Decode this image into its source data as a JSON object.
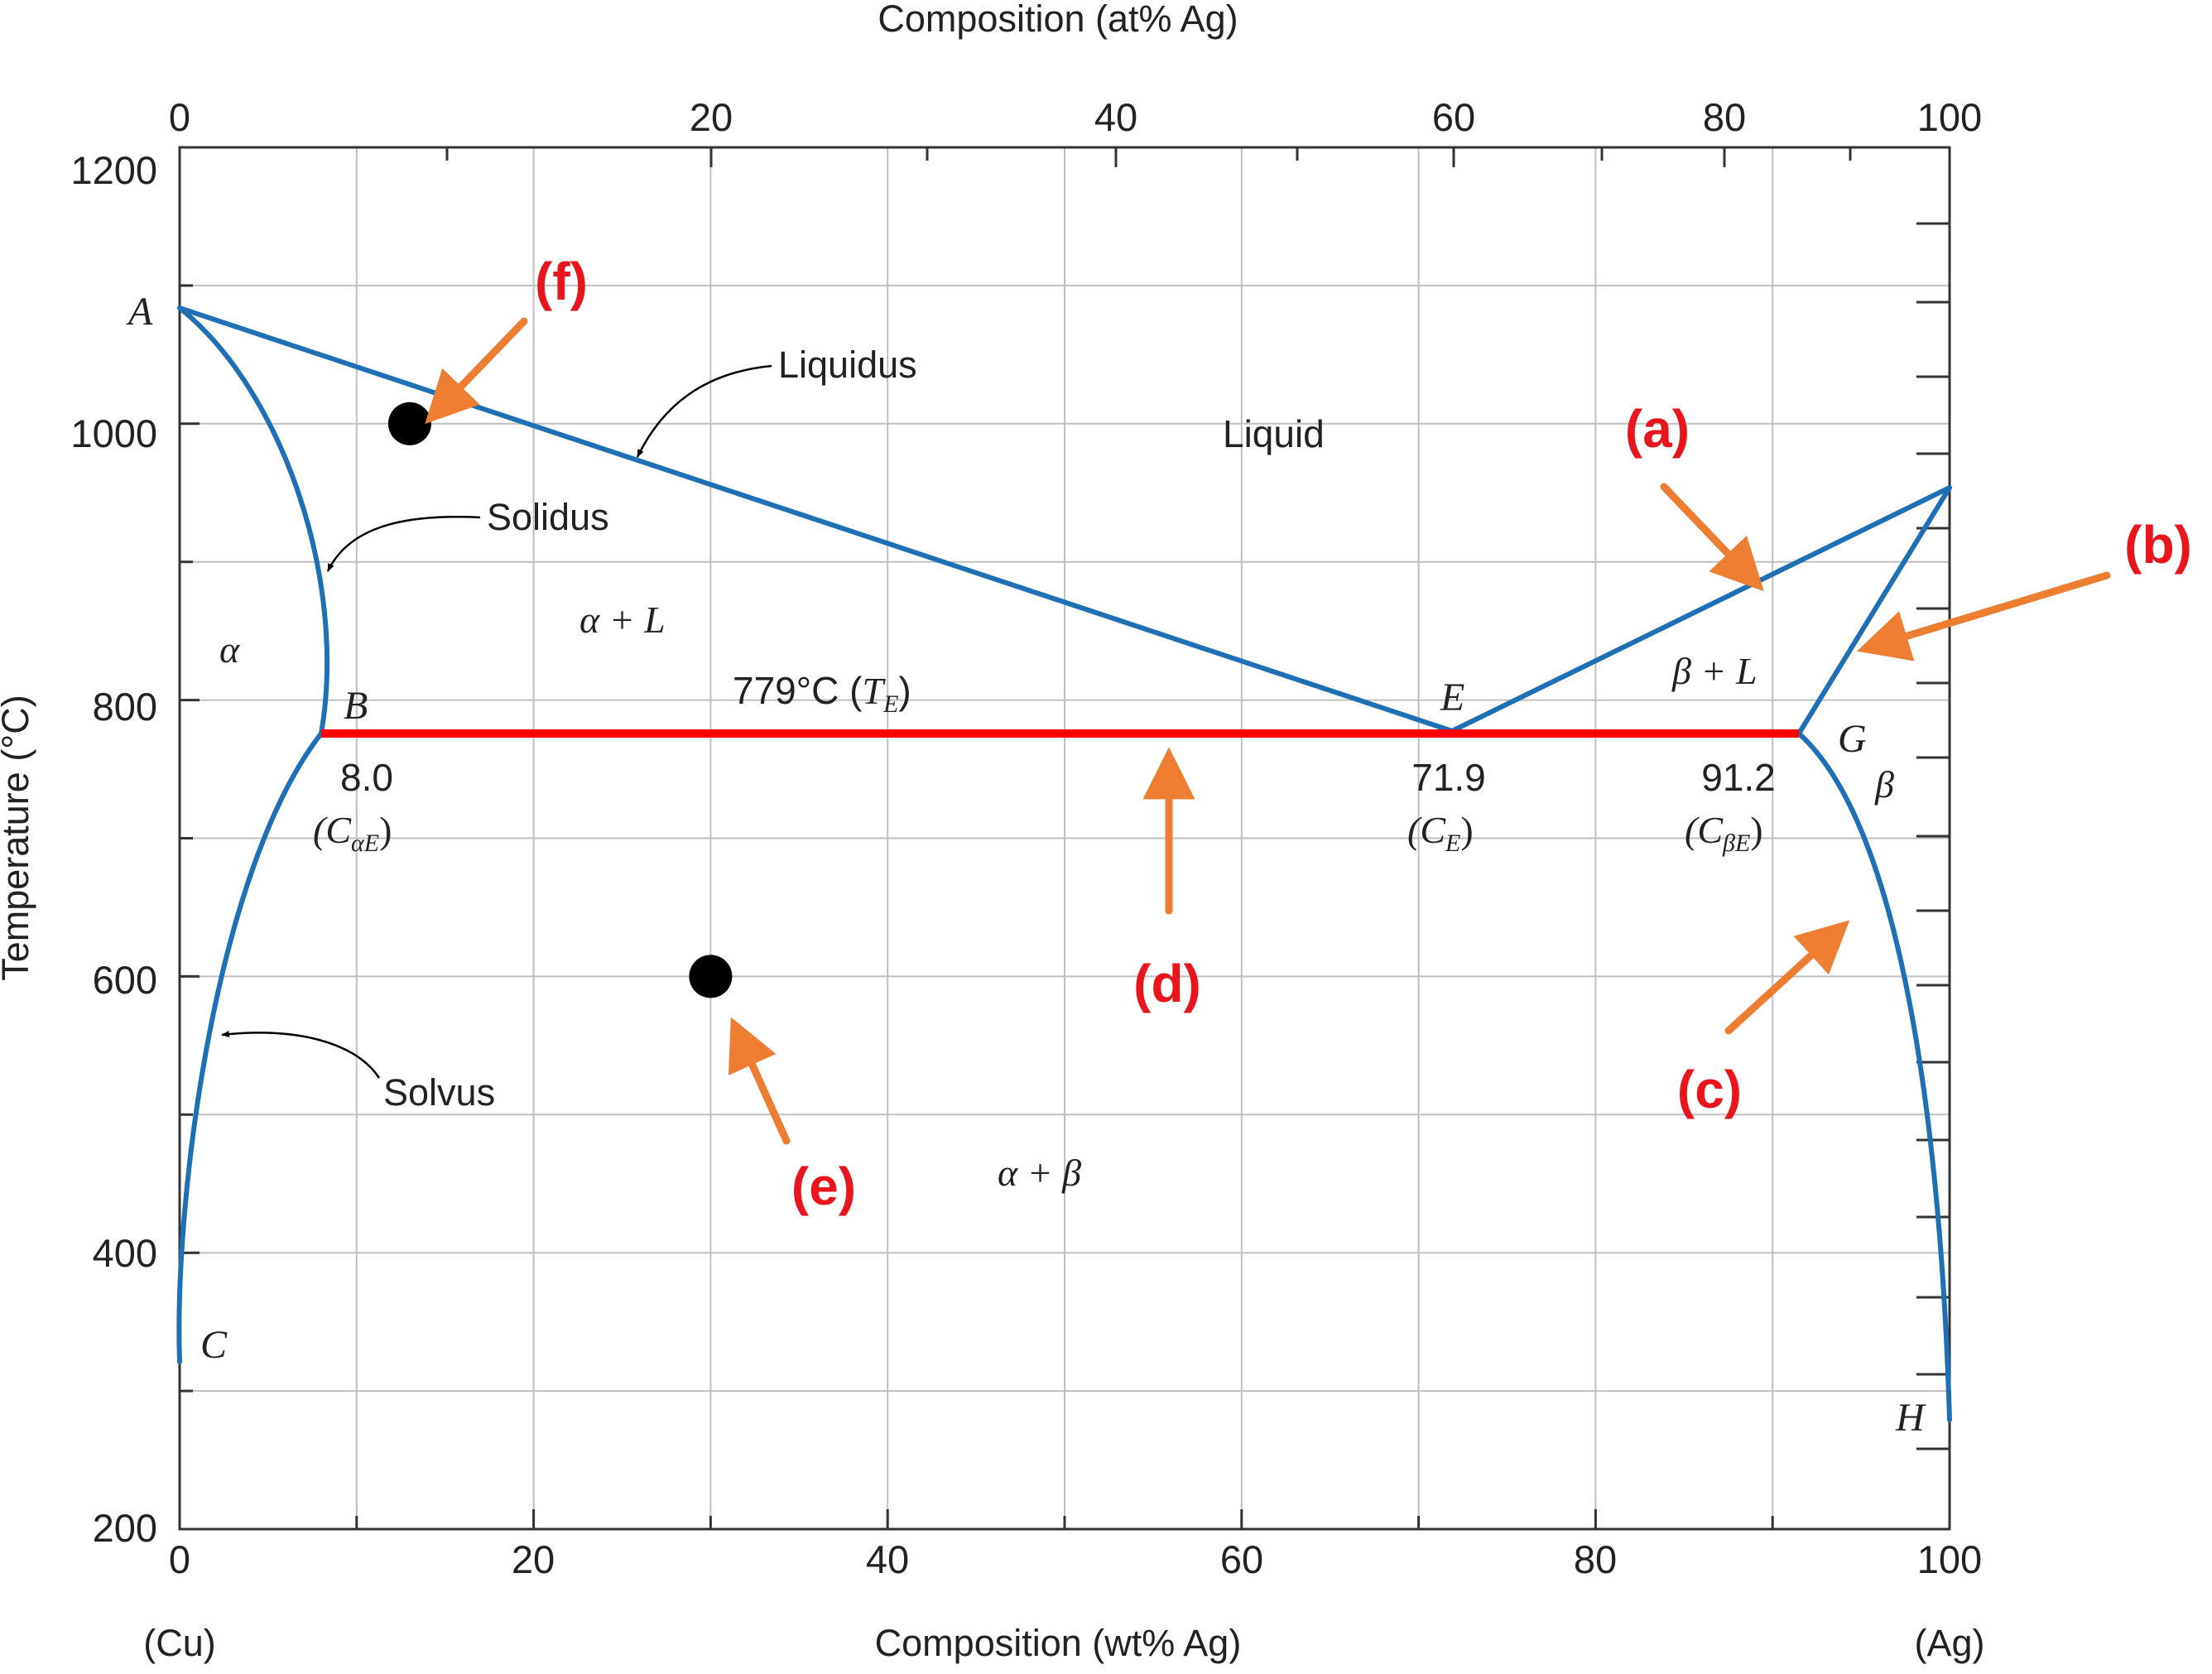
{
  "axes": {
    "top_title": "Composition (at% Ag)",
    "bottom_title": "Composition (wt% Ag)",
    "y_title": "Temperature (°C)",
    "bottom_left_element": "(Cu)",
    "bottom_right_element": "(Ag)",
    "bottom_ticks": [
      "0",
      "20",
      "40",
      "60",
      "80",
      "100"
    ],
    "top_ticks": [
      "0",
      "20",
      "40",
      "60",
      "80",
      "100"
    ],
    "y_ticks": [
      "1200",
      "1000",
      "800",
      "600",
      "400",
      "200"
    ]
  },
  "regions": {
    "liquid": "Liquid",
    "alpha_L": "α + L",
    "alpha": "α",
    "beta_L": "β + L",
    "beta": "β",
    "alpha_beta": "α + β"
  },
  "curve_labels": {
    "liquidus": "Liquidus",
    "solidus": "Solidus",
    "solvus": "Solvus"
  },
  "points": {
    "A": "A",
    "B": "B",
    "C": "C",
    "E": "E",
    "G": "G",
    "H": "H"
  },
  "eutectic": {
    "temp_label": "779°C (",
    "temp_symbol": "T",
    "temp_sub": "E",
    "temp_close": ")",
    "c_alpha_value": "8.0",
    "c_alpha_open": "(C",
    "c_alpha_sub": "αE",
    "c_alpha_close": ")",
    "c_e_value": "71.9",
    "c_e_open": "(C",
    "c_e_sub": "E",
    "c_e_close": ")",
    "c_beta_value": "91.2",
    "c_beta_open": "(C",
    "c_beta_sub": "βE",
    "c_beta_close": ")"
  },
  "annotations": [
    "(a)",
    "(b)",
    "(c)",
    "(d)",
    "(e)",
    "(f)"
  ],
  "colors": {
    "curve": "#1f6fb5",
    "eutectic_line": "#ff0000",
    "arrow": "#ed7d31",
    "annotation_text": "#e8161c",
    "grid": "#bfbfbf",
    "marker": "#000000"
  },
  "markers": [
    {
      "wt_ag": 13,
      "temp_c": 1000
    },
    {
      "wt_ag": 30,
      "temp_c": 600
    }
  ],
  "chart_data": {
    "type": "phase_diagram",
    "x_range_wt_pct_Ag": [
      0,
      100
    ],
    "y_range_temp_C": [
      200,
      1200
    ],
    "grid": true,
    "eutectic_temp_C": 779,
    "eutectic_compositions_wt_pct_Ag": {
      "alpha": 8.0,
      "liquid": 71.9,
      "beta": 91.2
    },
    "melting_points_C": {
      "Cu": 1085,
      "Ag": 962
    },
    "curves": [
      {
        "name": "Liquidus",
        "points": [
          [
            0,
            1085
          ],
          [
            71.9,
            779
          ],
          [
            100,
            962
          ]
        ]
      },
      {
        "name": "Solidus",
        "points": [
          [
            0,
            1085
          ],
          [
            8.0,
            779
          ]
        ]
      },
      {
        "name": "Solvus",
        "points": [
          [
            8.0,
            779
          ],
          [
            0,
            320
          ]
        ]
      },
      {
        "points": [
          [
            91.2,
            779
          ],
          [
            100,
            962
          ]
        ]
      },
      {
        "points": [
          [
            91.2,
            779
          ],
          [
            100,
            270
          ]
        ]
      }
    ]
  }
}
